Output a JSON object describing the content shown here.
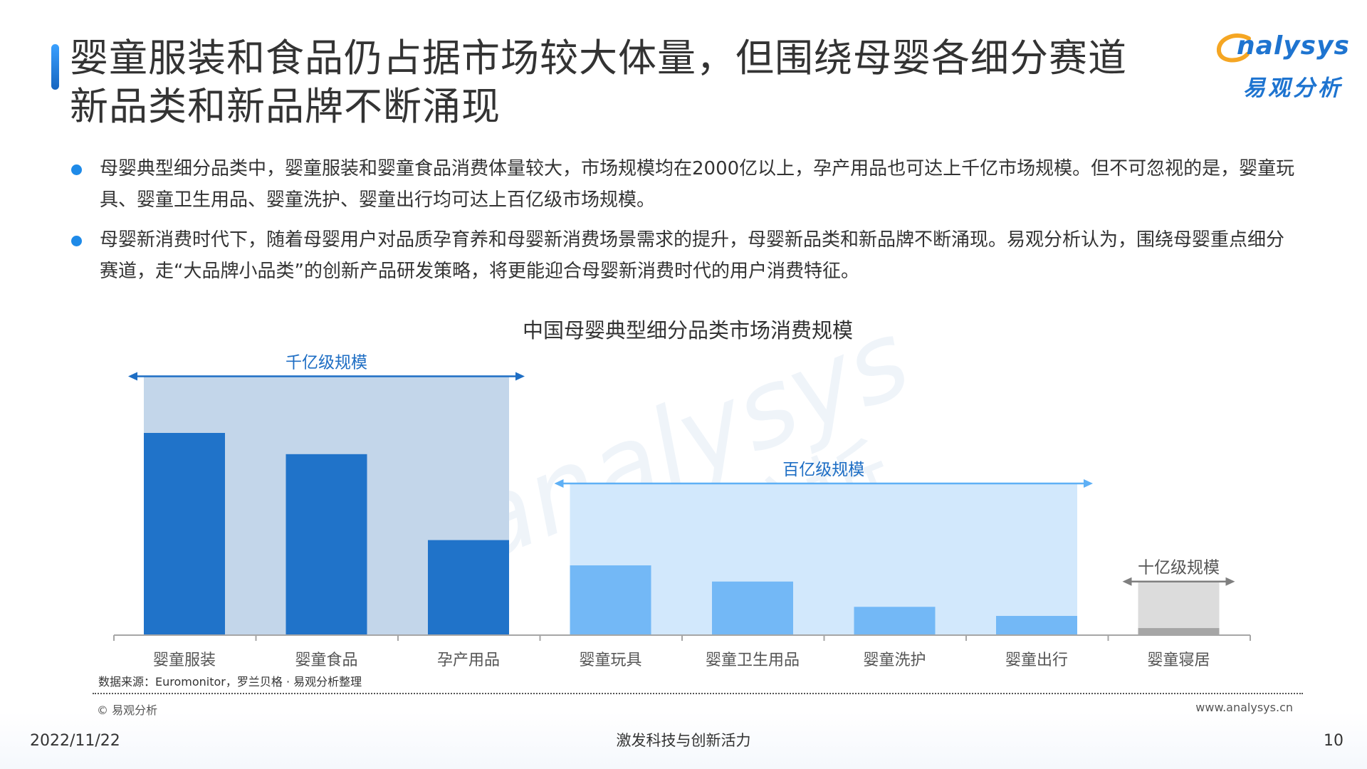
{
  "header": {
    "title_line1": "婴童服装和食品仍占据市场较大体量，但围绕母婴各细分赛道",
    "title_line2": "新品类和新品牌不断涌现"
  },
  "logo": {
    "text_en": "nalysys",
    "text_cn": "易观分析",
    "color": "#1e74d0",
    "swoosh_color": "#f5a623"
  },
  "bullets": [
    {
      "text": "母婴典型细分品类中，婴童服装和婴童食品消费体量较大，市场规模均在2000亿以上，孕产用品也可达上千亿市场规模。但不可忽视的是，婴童玩具、婴童卫生用品、婴童洗护、婴童出行均可达上百亿级市场规模。"
    },
    {
      "text": "母婴新消费时代下，随着母婴用户对品质孕育养和母婴新消费场景需求的提升，母婴新品类和新品牌不断涌现。易观分析认为，围绕母婴重点细分赛道，走“大品牌小品类”的创新产品研发策略，将更能迎合母婴新消费时代的用户消费特征。"
    }
  ],
  "chart_data": {
    "type": "bar",
    "title": "中国母婴典型细分品类市场消费规模",
    "categories": [
      "婴童服装",
      "婴童食品",
      "孕产用品",
      "婴童玩具",
      "婴童卫生用品",
      "婴童洗护",
      "婴童出行",
      "婴童寝居"
    ],
    "values": [
      100,
      89.5,
      47,
      34.5,
      26.5,
      14,
      9.5,
      3.5
    ],
    "bar_colors": [
      "#2073c9",
      "#2073c9",
      "#2073c9",
      "#73b8f6",
      "#73b8f6",
      "#73b8f6",
      "#73b8f6",
      "#a6a6a6"
    ],
    "groups": [
      {
        "label": "千亿级规模",
        "from": 0,
        "to": 2,
        "level": 128,
        "bg_color": "#c3d6ea",
        "arrow_color": "#1e6ec4",
        "label_color": "#1e6ec4"
      },
      {
        "label": "百亿级规模",
        "from": 3,
        "to": 6,
        "level": 75,
        "bg_color": "#d2e8fc",
        "arrow_color": "#5fb0f5",
        "label_color": "#1e6ec4"
      },
      {
        "label": "十亿级规模",
        "from": 7,
        "to": 7,
        "level": 26.5,
        "bg_color": "#dcdcdc",
        "arrow_color": "#7f7f7f",
        "label_color": "#555555"
      }
    ],
    "axis_color": "#a6a6a6",
    "ylim": [
      0,
      140
    ],
    "grid": false,
    "xlabel": "",
    "ylabel": ""
  },
  "watermark": {
    "text_en": "analysys",
    "text_cn": "易观分析"
  },
  "source": "数据来源：Euromonitor，罗兰贝格 · 易观分析整理",
  "footer": {
    "copyright": "© 易观分析",
    "website": "www.analysys.cn",
    "date": "2022/11/22",
    "slogan": "激发科技与创新活力",
    "page": "10"
  }
}
